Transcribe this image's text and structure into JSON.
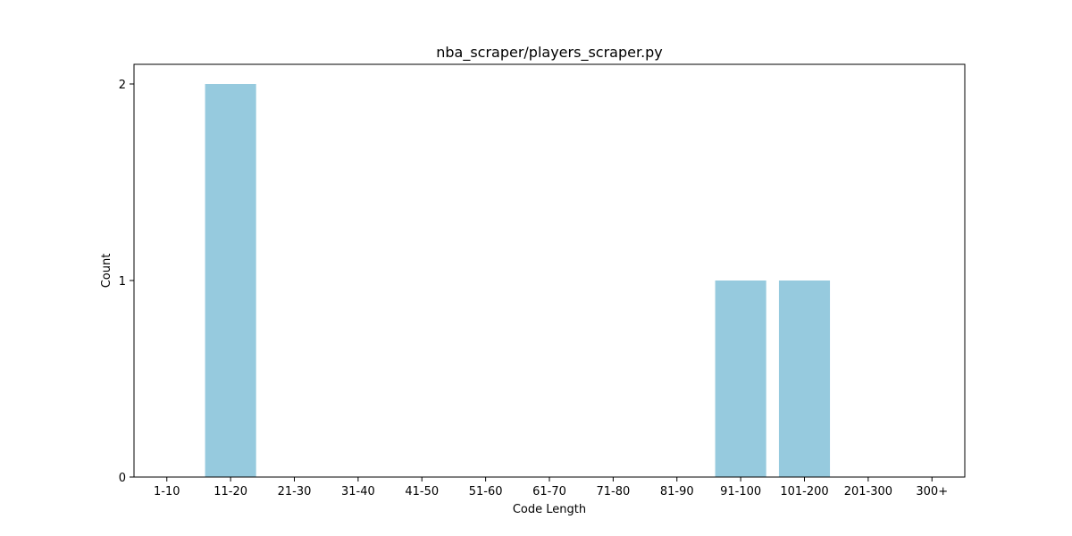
{
  "chart_data": {
    "type": "bar",
    "title": "nba_scraper/players_scraper.py",
    "xlabel": "Code Length",
    "ylabel": "Count",
    "categories": [
      "1-10",
      "11-20",
      "21-30",
      "31-40",
      "41-50",
      "51-60",
      "61-70",
      "71-80",
      "81-90",
      "91-100",
      "101-200",
      "201-300",
      "300+"
    ],
    "values": [
      0,
      2,
      0,
      0,
      0,
      0,
      0,
      0,
      0,
      1,
      1,
      0,
      0
    ],
    "yticks": [
      0,
      1,
      2
    ],
    "ylim": [
      0,
      2.1
    ],
    "bar_color": "#96cade",
    "grid": false,
    "legend": "none"
  }
}
